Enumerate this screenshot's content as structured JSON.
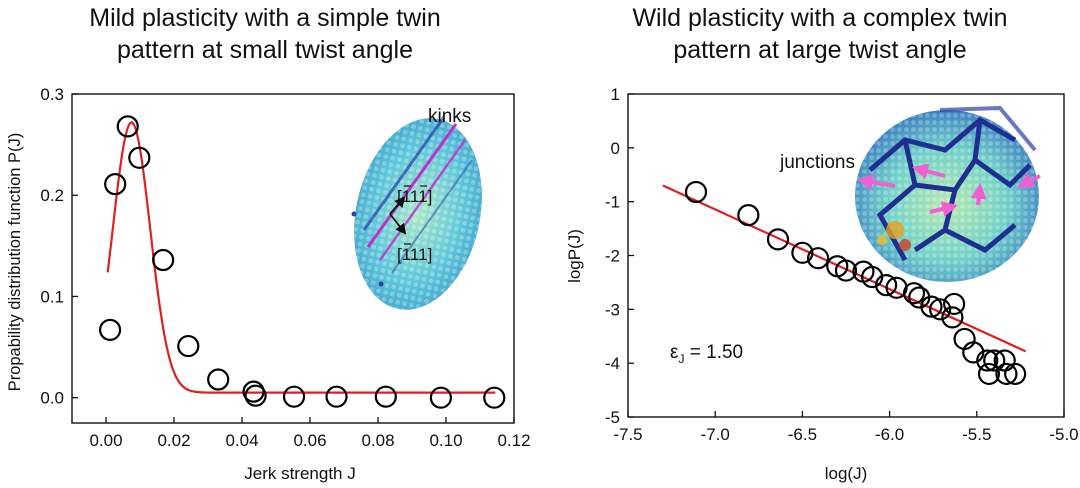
{
  "chart_data": [
    {
      "type": "scatter",
      "title_lines": [
        "Mild plasticity with a simple twin",
        "pattern at small twist angle"
      ],
      "xlabel": "Jerk strength J",
      "ylabel": "Propability distribution function P(J)",
      "xlim": [
        -0.01,
        0.12
      ],
      "ylim": [
        -0.025,
        0.3
      ],
      "xticks": [
        0.0,
        0.02,
        0.04,
        0.06,
        0.08,
        0.1,
        0.12
      ],
      "xtick_labels": [
        "0.00",
        "0.02",
        "0.04",
        "0.06",
        "0.08",
        "0.10",
        "0.12"
      ],
      "yticks": [
        0.0,
        0.1,
        0.2,
        0.3
      ],
      "ytick_labels": [
        "0.0",
        "0.1",
        "0.2",
        "0.3"
      ],
      "series": [
        {
          "kind": "points",
          "x": [
            0.0012,
            0.0027,
            0.0064,
            0.0098,
            0.0168,
            0.0242,
            0.033,
            0.0434,
            0.044,
            0.0553,
            0.0678,
            0.0823,
            0.0985,
            0.1142
          ],
          "y": [
            0.067,
            0.211,
            0.268,
            0.237,
            0.136,
            0.051,
            0.018,
            0.006,
            0.002,
            0.001,
            0.001,
            0.001,
            0.0,
            0.0
          ],
          "color": "#000000"
        },
        {
          "kind": "fit",
          "fit": {
            "baseline": 0.005,
            "amplitude": 0.267,
            "center": 0.0075,
            "width": 0.0055
          },
          "xrange": [
            0.0005,
            0.1145
          ],
          "color": "#e02020"
        }
      ],
      "inset": {
        "label": "kinks",
        "direction_labels": [
          "[111]",
          "[111]"
        ],
        "direction_bar_marks": "1 1 1 (bars on 1st and 3rd / bar on 1st)",
        "colors": [
          "#4fc3d9",
          "#9be0a0",
          "#2a3fa8",
          "#c030c8"
        ]
      }
    },
    {
      "type": "scatter",
      "title_lines": [
        "Wild plasticity with a complex twin",
        "pattern at large twist angle"
      ],
      "xlabel": "log(J)",
      "ylabel": "logP(J)",
      "xlim": [
        -7.5,
        -5.0
      ],
      "ylim": [
        -5,
        1
      ],
      "xticks": [
        -7.5,
        -7.0,
        -6.5,
        -6.0,
        -5.5,
        -5.0
      ],
      "xtick_labels": [
        "-7.5",
        "-7.0",
        "-6.5",
        "-6.0",
        "-5.5",
        "-5.0"
      ],
      "yticks": [
        1,
        0,
        -1,
        -2,
        -3,
        -4,
        -5
      ],
      "ytick_labels": [
        "1",
        "0",
        "-1",
        "-2",
        "-3",
        "-4",
        "-5"
      ],
      "annotation": {
        "symbol": "ε",
        "subscript": "J",
        "text": " = 1.50"
      },
      "series": [
        {
          "kind": "points",
          "x": [
            -7.11,
            -6.81,
            -6.64,
            -6.5,
            -6.41,
            -6.3,
            -6.25,
            -6.15,
            -6.1,
            -6.02,
            -5.96,
            -5.86,
            -5.83,
            -5.76,
            -5.71,
            -5.64,
            -5.63,
            -5.57,
            -5.52,
            -5.44,
            -5.43,
            -5.4,
            -5.34,
            -5.33,
            -5.28
          ],
          "y": [
            -0.82,
            -1.25,
            -1.7,
            -1.95,
            -2.05,
            -2.2,
            -2.28,
            -2.3,
            -2.4,
            -2.55,
            -2.6,
            -2.7,
            -2.78,
            -2.95,
            -3.0,
            -3.15,
            -2.9,
            -3.55,
            -3.8,
            -3.95,
            -4.2,
            -3.95,
            -3.95,
            -4.2,
            -4.2
          ],
          "color": "#000000"
        },
        {
          "kind": "fit",
          "line": {
            "x1": -7.3,
            "y1": -0.7,
            "x2": -5.22,
            "y2": -3.78
          },
          "color": "#e02020"
        }
      ],
      "inset": {
        "label": "junctions",
        "colors": [
          "#4fc3d9",
          "#9be0a0",
          "#1f2f8f",
          "#f060d0",
          "#e8a020"
        ]
      }
    }
  ]
}
